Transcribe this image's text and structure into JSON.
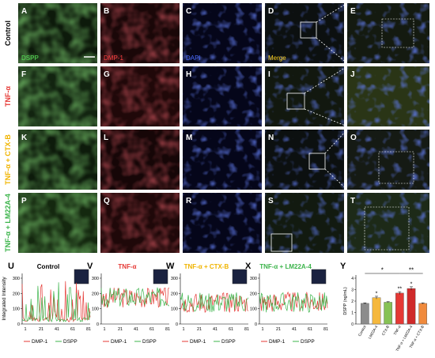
{
  "row_labels": [
    {
      "text": "Control",
      "color": "#000000"
    },
    {
      "text": "TNF-α",
      "color": "#e53935"
    },
    {
      "text": "TNF-α + CTX-B",
      "color": "#f0b400"
    },
    {
      "text": "TNF-α + LM22A-4",
      "color": "#3cb44b"
    }
  ],
  "panel_letters": [
    [
      "A",
      "B",
      "C",
      "D",
      "E"
    ],
    [
      "F",
      "G",
      "H",
      "I",
      "J"
    ],
    [
      "K",
      "L",
      "M",
      "N",
      "O"
    ],
    [
      "P",
      "Q",
      "R",
      "S",
      "T"
    ]
  ],
  "channel_labels": [
    {
      "text": "DSPP",
      "color": "#55e255"
    },
    {
      "text": "DMP-1",
      "color": "#ff4040"
    },
    {
      "text": "DAPI",
      "color": "#4a6bff"
    },
    {
      "text": "Merge",
      "color": "#ffd21a"
    }
  ],
  "channel_colors": {
    "dspp": "#1f4a1a",
    "dmp1": "#3a0f12",
    "dapi": "#0b0f3a",
    "merge": "#1d2230",
    "zoom": "#1e2a1a"
  },
  "profile_panels": [
    {
      "letter": "U",
      "title": "Control",
      "title_color": "#000000"
    },
    {
      "letter": "V",
      "title": "TNF-α",
      "title_color": "#e53935"
    },
    {
      "letter": "W",
      "title": "TNF-α + CTX-B",
      "title_color": "#f0b400"
    },
    {
      "letter": "X",
      "title": "TNF-α + LM22A-4",
      "title_color": "#3cb44b"
    }
  ],
  "profile_axis": {
    "ylabel": "Integrated Intensity",
    "yticks": [
      "0",
      "100",
      "200",
      "300"
    ],
    "xticks": [
      "1",
      "21",
      "41",
      "61",
      "81"
    ],
    "legend": [
      {
        "name": "DMP-1",
        "color": "#e53935"
      },
      {
        "name": "DSPP",
        "color": "#3cb44b"
      }
    ]
  },
  "chart_data": {
    "type": "bar",
    "letter": "Y",
    "ylabel": "DSPP (ng/mL)",
    "yticks": [
      "0",
      "1",
      "2",
      "3",
      "4"
    ],
    "ylim": [
      0,
      4
    ],
    "categories": [
      "Control",
      "LM22A-4",
      "CTX-B",
      "TNF-α",
      "TNF-α + LM22A-4",
      "TNF-α + CTX-B"
    ],
    "values": [
      1.8,
      2.3,
      1.9,
      2.7,
      3.1,
      1.8
    ],
    "errors": [
      0.05,
      0.12,
      0.05,
      0.12,
      0.15,
      0.05
    ],
    "colors": [
      "#8c8c8c",
      "#f5b83d",
      "#86c255",
      "#e53935",
      "#cf2a2a",
      "#f08a3c"
    ],
    "bar_marks": [
      "",
      "*",
      "",
      "**",
      "*",
      ""
    ],
    "brackets": [
      {
        "from": 0,
        "to": 3,
        "label": "*"
      },
      {
        "from": 3,
        "to": 5,
        "label": "**"
      }
    ]
  }
}
